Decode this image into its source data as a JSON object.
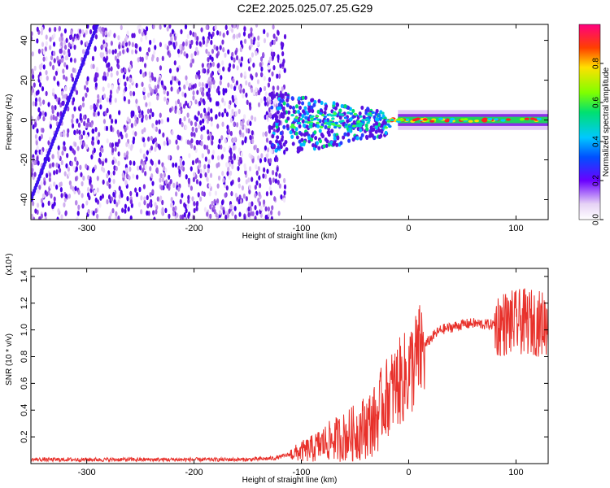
{
  "title": "C2E2.2025.025.07.25.G29",
  "chart_data": [
    {
      "type": "heatmap",
      "xlabel": "Height of straight line (km)",
      "ylabel": "Frequency (Hz)",
      "xlim": [
        -352,
        130
      ],
      "ylim": [
        -50,
        48
      ],
      "xticks": [
        -300,
        -200,
        -100,
        0,
        100
      ],
      "yticks": [
        -40,
        -20,
        0,
        20,
        40
      ],
      "colorbar": {
        "label": "Normalized spectral amplitude",
        "range": [
          0.0,
          1.0
        ],
        "ticks": [
          0.0,
          0.2,
          0.4,
          0.6,
          0.8
        ],
        "tick_labels": [
          "0.0",
          "0.2",
          "0.4",
          "0.6",
          "0.8"
        ],
        "colormap": "rainbow"
      },
      "features": {
        "noise_region_x": [
          -352,
          -115
        ],
        "drifting_line": {
          "x": [
            -352,
            -290
          ],
          "y": [
            -40,
            48
          ]
        },
        "main_band_center_hz": 0,
        "main_band_x": [
          -130,
          130
        ]
      }
    },
    {
      "type": "line",
      "xlabel": "Height of straight line (km)",
      "ylabel": "SNR (10 * v/v)",
      "y_multiplier": "(x10⁴)",
      "xlim": [
        -352,
        130
      ],
      "ylim": [
        0,
        1.46
      ],
      "xticks": [
        -300,
        -200,
        -100,
        0,
        100
      ],
      "yticks": [
        0.2,
        0.4,
        0.6,
        0.8,
        1.0,
        1.2,
        1.4
      ],
      "ytick_labels": [
        "0.2",
        "0.4",
        "0.6",
        "0.8",
        "1.0",
        "1.2",
        "1.4"
      ],
      "color": "#e8312b",
      "series": [
        {
          "x": [
            -352,
            -300,
            -250,
            -200,
            -150,
            -125,
            -110,
            -100,
            -90,
            -80,
            -70,
            -60,
            -50,
            -40,
            -30,
            -25,
            -20,
            -15,
            -10,
            -5,
            0,
            5,
            10,
            15,
            20,
            25,
            30,
            40,
            50,
            60,
            70,
            80,
            90,
            95,
            100,
            105,
            110,
            115,
            120,
            130
          ],
          "y": [
            0.03,
            0.03,
            0.03,
            0.03,
            0.03,
            0.04,
            0.07,
            0.09,
            0.11,
            0.15,
            0.18,
            0.2,
            0.23,
            0.28,
            0.33,
            0.45,
            0.5,
            0.55,
            0.6,
            0.63,
            0.68,
            0.75,
            0.82,
            0.88,
            0.93,
            0.97,
            1.0,
            1.02,
            1.04,
            1.05,
            1.04,
            1.04,
            1.05,
            1.05,
            1.05,
            1.06,
            1.06,
            1.06,
            1.05,
            1.05
          ]
        }
      ]
    }
  ]
}
